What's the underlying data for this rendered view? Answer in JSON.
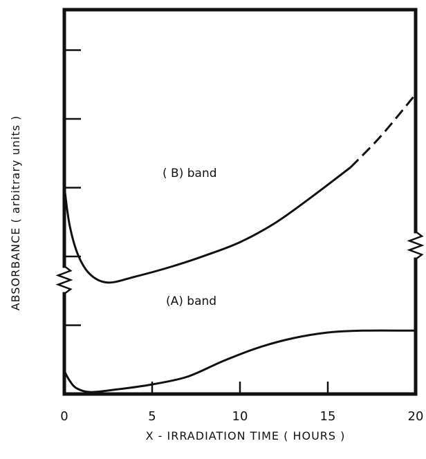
{
  "chart_data": {
    "type": "line",
    "xlabel": "X - IRRADIATION  TIME   ( HOURS )",
    "ylabel": "ABSORBANCE ( arbitrary units )",
    "xlim": [
      0,
      20
    ],
    "x_ticks": [
      "0",
      "5",
      "10",
      "15",
      "20"
    ],
    "y_ticks_count": 5,
    "grid": false,
    "axis_break": "zigzag break marks on both vertical axes between the two bands",
    "series": [
      {
        "name": "( B) band",
        "x": [
          0,
          0.3,
          0.8,
          1.5,
          2.5,
          4,
          6,
          8,
          10,
          12,
          14,
          16.3
        ],
        "y": [
          0.54,
          0.44,
          0.36,
          0.31,
          0.29,
          0.305,
          0.33,
          0.36,
          0.395,
          0.445,
          0.51,
          0.59
        ],
        "extrapolated": {
          "x": [
            16.3,
            18,
            20
          ],
          "y": [
            0.59,
            0.67,
            0.78
          ]
        }
      },
      {
        "name": "(A) band",
        "x": [
          0,
          0.3,
          0.7,
          1.5,
          3,
          5,
          7,
          9,
          11,
          13,
          15,
          17,
          20
        ],
        "y": [
          0.06,
          0.035,
          0.015,
          0.005,
          0.012,
          0.025,
          0.045,
          0.085,
          0.12,
          0.145,
          0.16,
          0.165,
          0.165
        ]
      }
    ]
  }
}
